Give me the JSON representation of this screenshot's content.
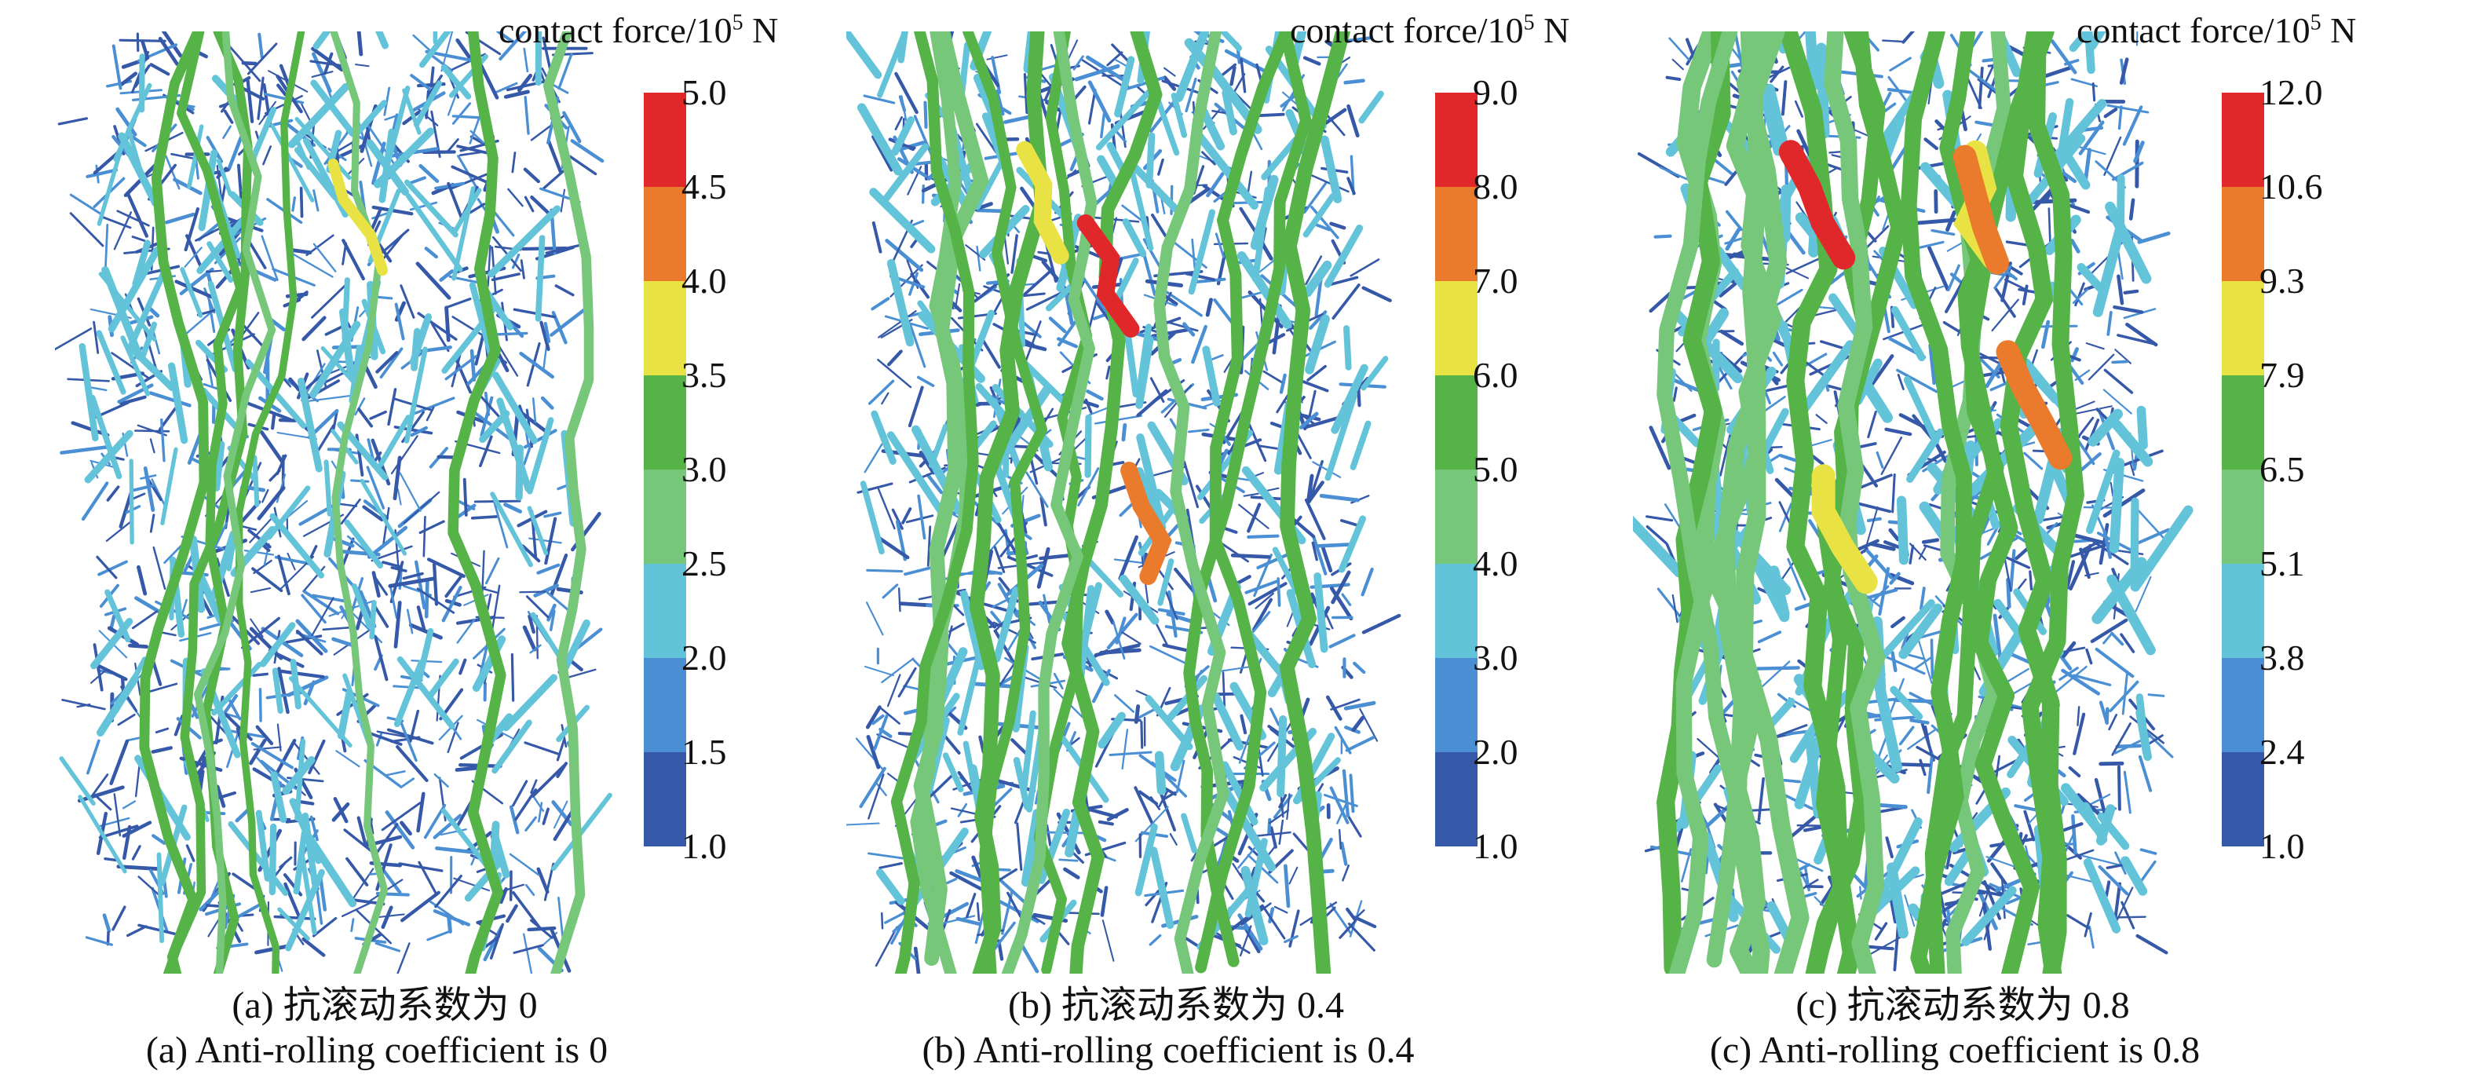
{
  "colors": [
    "#3558a8",
    "#4a8fd4",
    "#63c3d8",
    "#76c77a",
    "#55b348",
    "#e9e244",
    "#ea7a2c",
    "#e0282a"
  ],
  "panels": [
    {
      "legend_title": "contact force/10",
      "legend_exp": "5",
      "legend_unit": " N",
      "ticks": [
        "5.0",
        "4.5",
        "4.0",
        "3.5",
        "3.0",
        "2.5",
        "2.0",
        "1.5",
        "1.0"
      ],
      "caption_cn": "(a) 抗滚动系数为 0",
      "caption_en": "(a) Anti-rolling coefficient is 0"
    },
    {
      "legend_title": "contact force/10",
      "legend_exp": "5",
      "legend_unit": " N",
      "ticks": [
        "9.0",
        "8.0",
        "7.0",
        "6.0",
        "5.0",
        "4.0",
        "3.0",
        "2.0",
        "1.0"
      ],
      "caption_cn": "(b) 抗滚动系数为 0.4",
      "caption_en": "(b) Anti-rolling coefficient is 0.4"
    },
    {
      "legend_title": "contact force/10",
      "legend_exp": "5",
      "legend_unit": " N",
      "ticks": [
        "12.0",
        "10.6",
        "9.3",
        "7.9",
        "6.5",
        "5.1",
        "3.8",
        "2.4",
        "1.0"
      ],
      "caption_cn": "(c) 抗滚动系数为 0.8",
      "caption_en": "(c) Anti-rolling coefficient is 0.8"
    }
  ]
}
